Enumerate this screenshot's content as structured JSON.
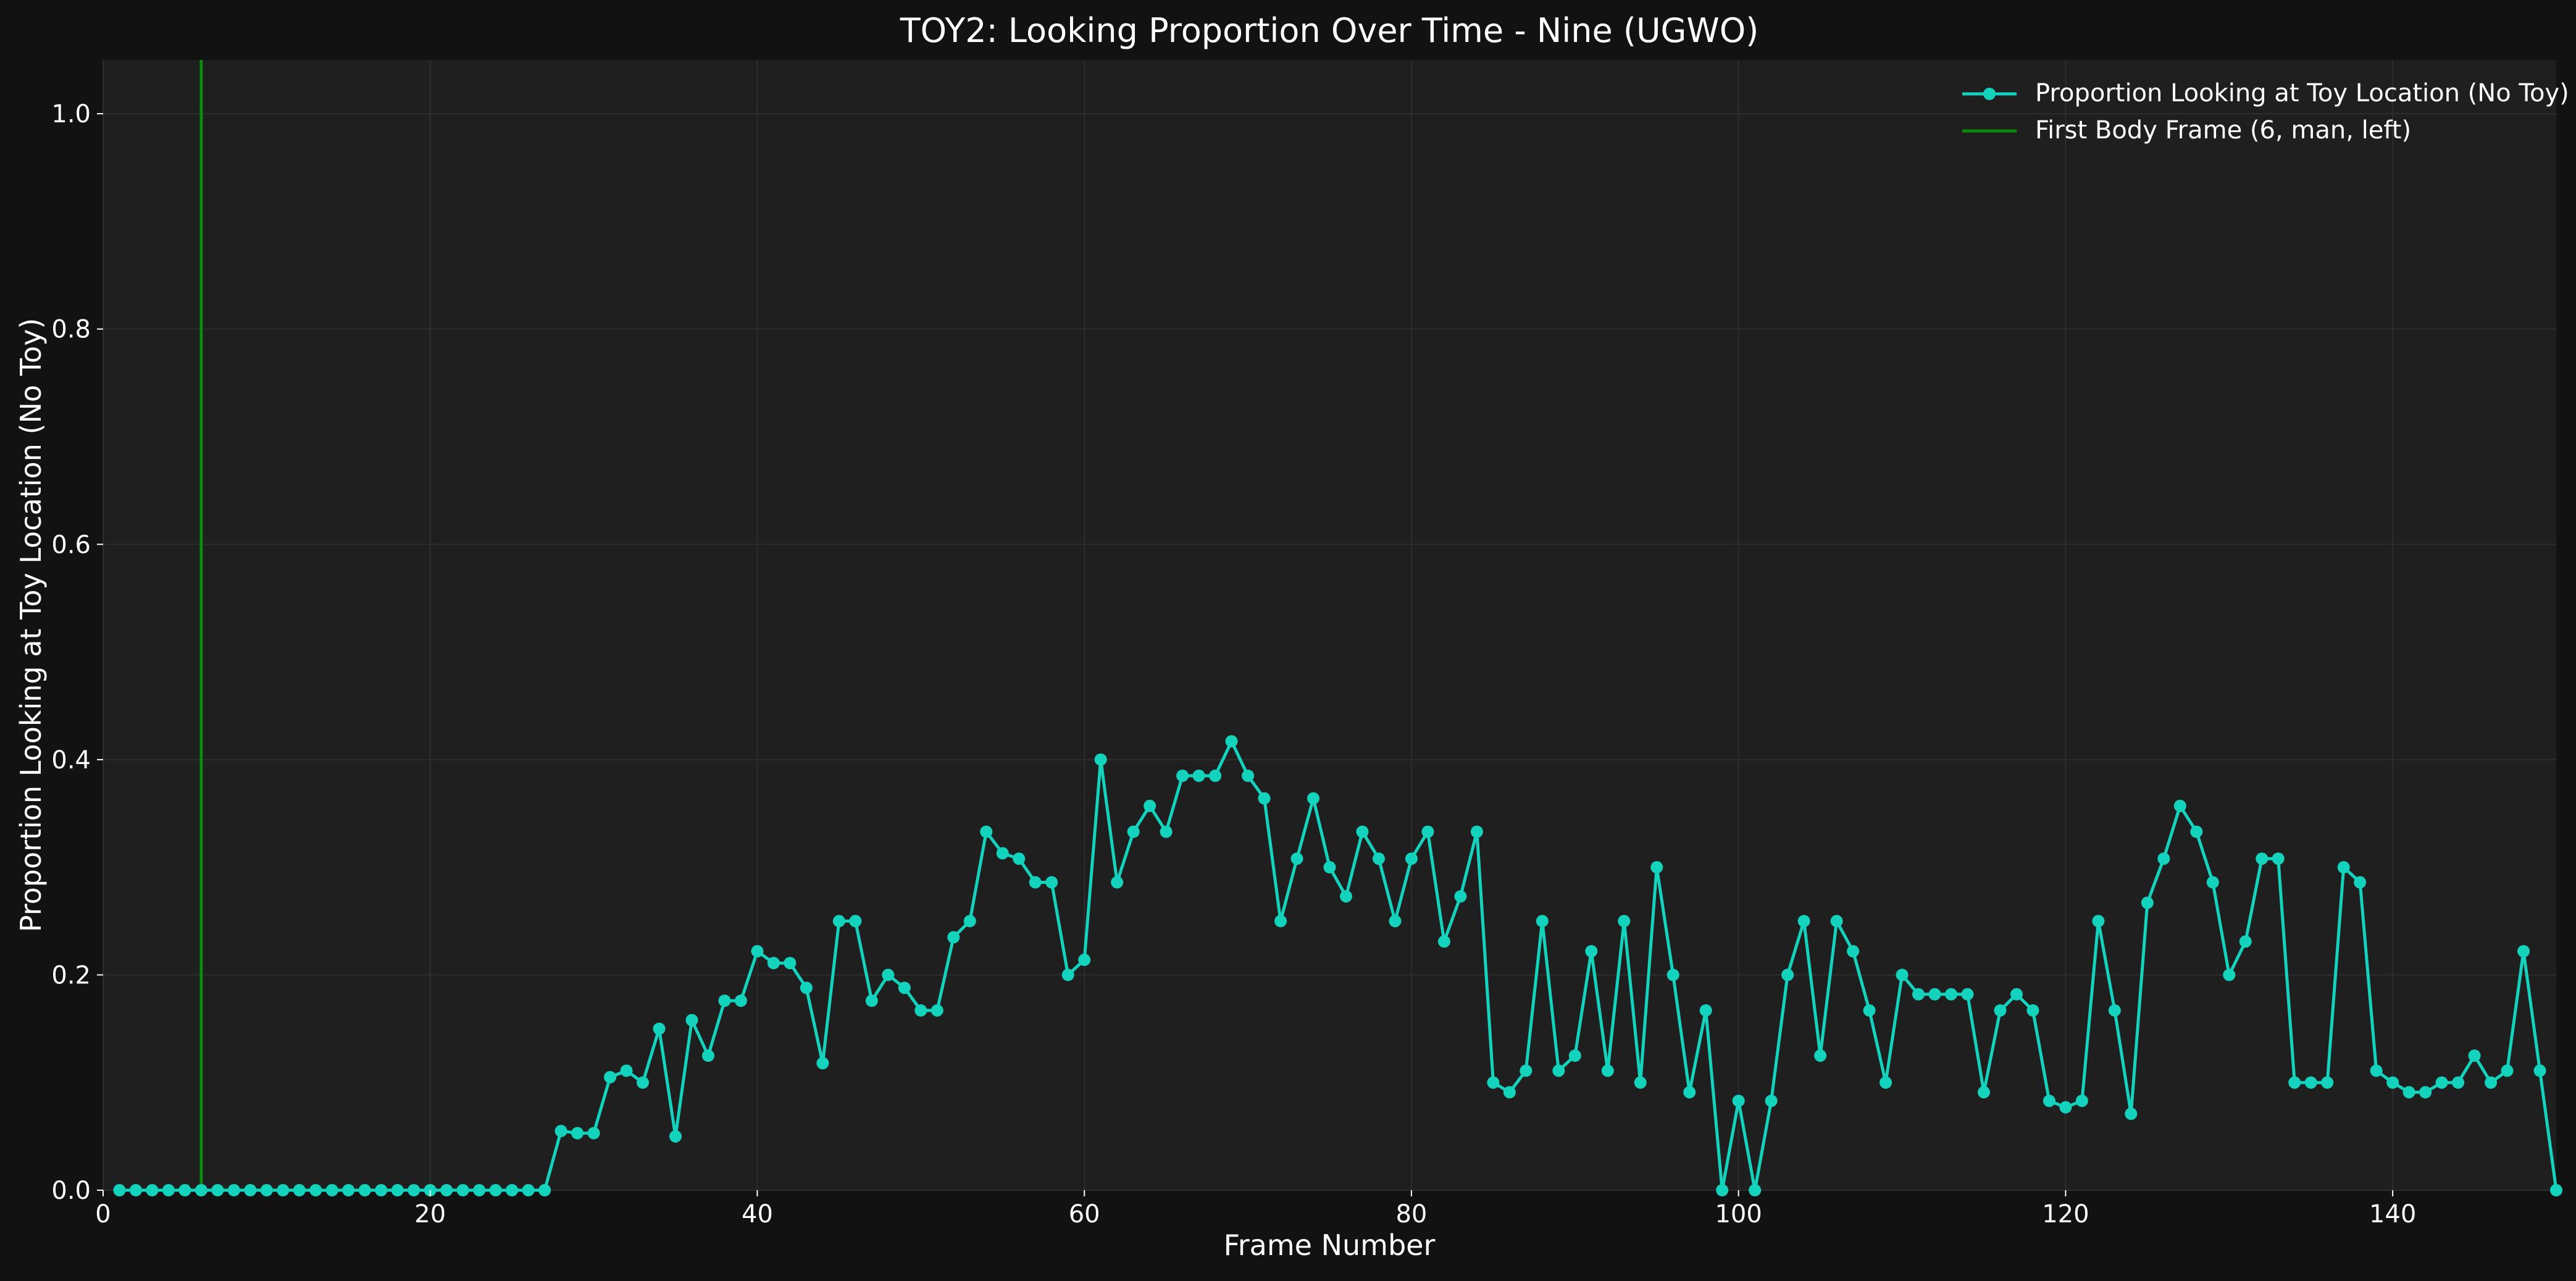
{
  "page": {
    "background": "#121212"
  },
  "chart_data": {
    "type": "line",
    "title": "TOY2: Looking Proportion Over Time - Nine (UGWO)",
    "xlabel": "Frame Number",
    "ylabel": "Proportion Looking at Toy Location (No Toy)",
    "xlim": [
      0,
      150
    ],
    "ylim": [
      0,
      1.05
    ],
    "xticks": [
      0,
      20,
      40,
      60,
      80,
      100,
      120,
      140
    ],
    "yticks": [
      0.0,
      0.2,
      0.4,
      0.6,
      0.8,
      1.0
    ],
    "xtick_labels": [
      "0",
      "20",
      "40",
      "60",
      "80",
      "100",
      "120",
      "140"
    ],
    "ytick_labels": [
      "0.0",
      "0.2",
      "0.4",
      "0.6",
      "0.8",
      "1.0"
    ],
    "grid": true,
    "legend_position": "top-right",
    "colors": {
      "figure_bg": "#121212",
      "axes_bg": "#1f1f1f",
      "grid": "#2e2e2e",
      "text": "#ffffff",
      "series": "#14d3bd",
      "vline": "#0b8a0b"
    },
    "series": [
      {
        "name": "Proportion Looking at Toy Location (No Toy)",
        "x": [
          1,
          2,
          3,
          4,
          5,
          6,
          7,
          8,
          9,
          10,
          11,
          12,
          13,
          14,
          15,
          16,
          17,
          18,
          19,
          20,
          21,
          22,
          23,
          24,
          25,
          26,
          27,
          28,
          29,
          30,
          31,
          32,
          33,
          34,
          35,
          36,
          37,
          38,
          39,
          40,
          41,
          42,
          43,
          44,
          45,
          46,
          47,
          48,
          49,
          50,
          51,
          52,
          53,
          54,
          55,
          56,
          57,
          58,
          59,
          60,
          61,
          62,
          63,
          64,
          65,
          66,
          67,
          68,
          69,
          70,
          71,
          72,
          73,
          74,
          75,
          76,
          77,
          78,
          79,
          80,
          81,
          82,
          83,
          84,
          85,
          86,
          87,
          88,
          89,
          90,
          91,
          92,
          93,
          94,
          95,
          96,
          97,
          98,
          99,
          100,
          101,
          102,
          103,
          104,
          105,
          106,
          107,
          108,
          109,
          110,
          111,
          112,
          113,
          114,
          115,
          116,
          117,
          118,
          119,
          120,
          121,
          122,
          123,
          124,
          125,
          126,
          127,
          128,
          129,
          130,
          131,
          132,
          133,
          134,
          135,
          136,
          137,
          138,
          139,
          140,
          141,
          142,
          143,
          144,
          145,
          146,
          147,
          148,
          149,
          150
        ],
        "y": [
          0,
          0,
          0,
          0,
          0,
          0,
          0,
          0,
          0,
          0,
          0,
          0,
          0,
          0,
          0,
          0,
          0,
          0,
          0,
          0,
          0,
          0,
          0,
          0,
          0,
          0,
          0,
          0.055,
          0.053,
          0.053,
          0.105,
          0.111,
          0.1,
          0.15,
          0.05,
          0.158,
          0.125,
          0.176,
          0.176,
          0.222,
          0.211,
          0.211,
          0.188,
          0.118,
          0.25,
          0.25,
          0.176,
          0.2,
          0.188,
          0.167,
          0.167,
          0.235,
          0.25,
          0.333,
          0.313,
          0.308,
          0.286,
          0.286,
          0.2,
          0.214,
          0.4,
          0.286,
          0.333,
          0.357,
          0.333,
          0.385,
          0.385,
          0.385,
          0.417,
          0.385,
          0.364,
          0.25,
          0.308,
          0.364,
          0.3,
          0.273,
          0.333,
          0.308,
          0.25,
          0.308,
          0.333,
          0.231,
          0.273,
          0.333,
          0.1,
          0.091,
          0.111,
          0.25,
          0.111,
          0.125,
          0.222,
          0.111,
          0.25,
          0.1,
          0.3,
          0.2,
          0.091,
          0.167,
          0,
          0.083,
          0,
          0.083,
          0.2,
          0.25,
          0.125,
          0.25,
          0.222,
          0.167,
          0.1,
          0.2,
          0.182,
          0.182,
          0.182,
          0.182,
          0.091,
          0.167,
          0.182,
          0.167,
          0.083,
          0.077,
          0.083,
          0.25,
          0.167,
          0.071,
          0.267,
          0.308,
          0.357,
          0.333,
          0.286,
          0.2,
          0.231,
          0.308,
          0.308,
          0.1,
          0.1,
          0.1,
          0.3,
          0.286,
          0.111,
          0.1,
          0.091,
          0.091,
          0.1,
          0.1,
          0.125,
          0.1,
          0.111,
          0.222,
          0.111,
          0
        ]
      }
    ],
    "vlines": [
      {
        "name": "First Body Frame (6, man, left)",
        "x": 6
      }
    ]
  }
}
